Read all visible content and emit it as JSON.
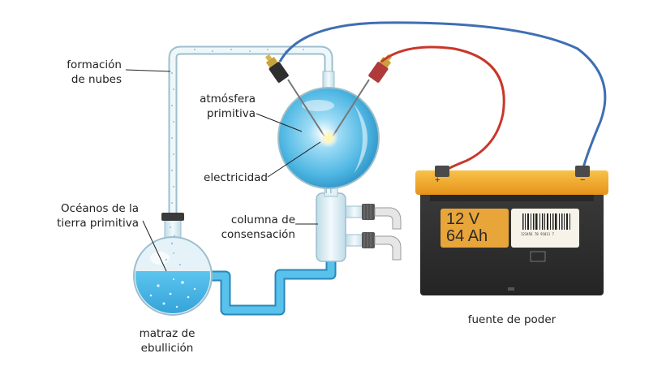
{
  "labels": {
    "cloud_formation": [
      "formación",
      "de nubes"
    ],
    "atmosphere": [
      "atmósfera",
      "primitiva"
    ],
    "electricity": "electricidad",
    "oceans": [
      "Océanos de la",
      "tierra primitiva"
    ],
    "condensation_column": [
      "columna de",
      "consensación"
    ],
    "boiling_flask": [
      "matraz de",
      "ebullición"
    ],
    "power_source": "fuente de poder"
  },
  "battery": {
    "voltage": "12 V",
    "capacity": "64 Ah",
    "plus_symbol": "+",
    "minus_symbol": "−",
    "barcode_numbers": "123456   78   91011   7"
  },
  "colors": {
    "water": "#3fb3e6",
    "glass": "#d9ecf4",
    "wire_red": "#c8372b",
    "wire_blue": "#3f6fb4",
    "battery_lid": "#f2a51c",
    "battery_body": "#2f2f2f",
    "battery_label": "#e8a53a"
  }
}
